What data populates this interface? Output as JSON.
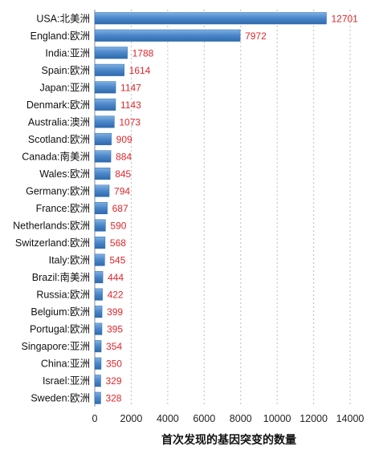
{
  "chart_data": {
    "type": "bar",
    "orientation": "horizontal",
    "title": "",
    "xlabel": "首次发现的基因突变的数量",
    "ylabel": "",
    "xlim": [
      0,
      14000
    ],
    "xticks": [
      0,
      2000,
      4000,
      6000,
      8000,
      10000,
      12000,
      14000
    ],
    "grid": "vertical-dashed",
    "bar_color": "#4a86c8",
    "label_color": "#e0262b",
    "categories": [
      "USA:北美洲",
      "England:欧洲",
      "India:亚洲",
      "Spain:欧洲",
      "Japan:亚洲",
      "Denmark:欧洲",
      "Australia:澳洲",
      "Scotland:欧洲",
      "Canada:南美洲",
      "Wales:欧洲",
      "Germany:欧洲",
      "France:欧洲",
      "Netherlands:欧洲",
      "Switzerland:欧洲",
      "Italy:欧洲",
      "Brazil:南美洲",
      "Russia:欧洲",
      "Belgium:欧洲",
      "Portugal:欧洲",
      "Singapore:亚洲",
      "China:亚洲",
      "Israel:亚洲",
      "Sweden:欧洲"
    ],
    "values": [
      12701,
      7972,
      1788,
      1614,
      1147,
      1143,
      1073,
      909,
      884,
      845,
      794,
      687,
      590,
      568,
      545,
      444,
      422,
      399,
      395,
      354,
      350,
      329,
      328
    ]
  }
}
